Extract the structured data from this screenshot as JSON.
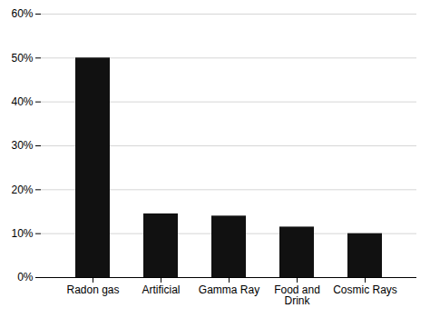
{
  "chart_data": {
    "type": "bar",
    "categories": [
      "Radon gas",
      "Artificial",
      "Gamma Ray",
      "Food and\nDrink",
      "Cosmic Rays"
    ],
    "values": [
      0.5,
      0.145,
      0.14,
      0.115,
      0.1
    ],
    "color": "#111111",
    "ylim": [
      0,
      0.6
    ],
    "yticks": [
      {
        "value": 0.0,
        "label": "0%"
      },
      {
        "value": 0.1,
        "label": "10%"
      },
      {
        "value": 0.2,
        "label": "20%"
      },
      {
        "value": 0.3,
        "label": "30%"
      },
      {
        "value": 0.4,
        "label": "40%"
      },
      {
        "value": 0.5,
        "label": "50%"
      },
      {
        "value": 0.6,
        "label": "60%"
      }
    ],
    "grid": true
  }
}
